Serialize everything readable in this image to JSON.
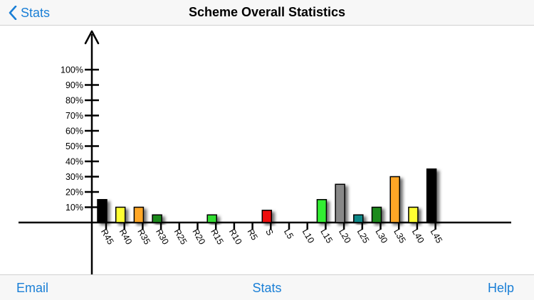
{
  "navbar": {
    "back_label": "Stats",
    "title": "Scheme Overall Statistics"
  },
  "toolbar": {
    "email_label": "Email",
    "stats_label": "Stats",
    "help_label": "Help"
  },
  "icons": {
    "back": "chevron-left-icon"
  },
  "colors": {
    "accent": "#1a7fd6"
  },
  "chart_data": {
    "type": "bar",
    "title": "",
    "xlabel": "",
    "ylabel": "",
    "ylim": [
      0,
      100
    ],
    "yticks": [
      "10%",
      "20%",
      "30%",
      "40%",
      "50%",
      "60%",
      "70%",
      "80%",
      "90%",
      "100%"
    ],
    "grid": false,
    "categories": [
      "R45",
      "R40",
      "R35",
      "R30",
      "R25",
      "R20",
      "R15",
      "R10",
      "R5",
      "S",
      "L5",
      "L10",
      "L15",
      "L20",
      "L25",
      "L30",
      "L35",
      "L40",
      "L45"
    ],
    "values": [
      15,
      10,
      10,
      5,
      0,
      0,
      5,
      0,
      0,
      8,
      0,
      0,
      15,
      25,
      5,
      10,
      30,
      10,
      35
    ],
    "bar_colors": [
      "#000000",
      "#ffff33",
      "#ffa726",
      "#1b8a1b",
      "#000000",
      "#000000",
      "#33dd33",
      "#000000",
      "#000000",
      "#ee1111",
      "#000000",
      "#000000",
      "#33ee33",
      "#888888",
      "#118888",
      "#1b8a1b",
      "#ffa726",
      "#ffff33",
      "#000000"
    ]
  }
}
